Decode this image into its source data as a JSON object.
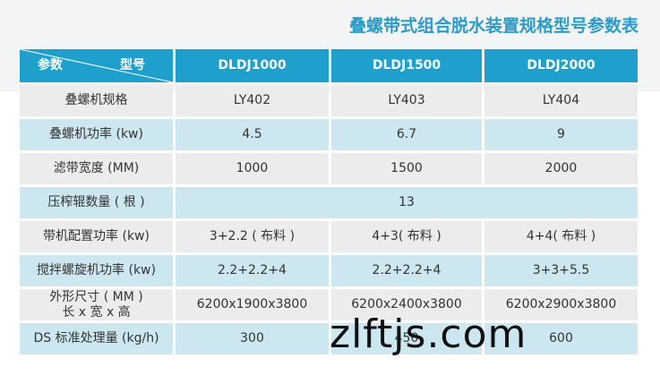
{
  "title": "叠螺带式组合脱水装置规格型号参数表",
  "table": {
    "header": {
      "param_label": "参数",
      "model_label": "型号",
      "models": [
        "DLDJ1000",
        "DLDJ1500",
        "DLDJ2000"
      ]
    },
    "rows": [
      {
        "label": [
          "叠螺机规格"
        ],
        "cells": [
          "LY402",
          "LY403",
          "LY404"
        ]
      },
      {
        "label": [
          "叠螺机功率 (kw)"
        ],
        "cells": [
          "4.5",
          "6.7",
          "9"
        ]
      },
      {
        "label": [
          "滤带宽度 (MM)"
        ],
        "cells": [
          "1000",
          "1500",
          "2000"
        ]
      },
      {
        "label": [
          "压榨辊数量 ( 根 )"
        ],
        "cells": [
          "13"
        ]
      },
      {
        "label": [
          "带机配置功率 (kw)"
        ],
        "cells": [
          "3+2.2 ( 布料 )",
          "4+3( 布料 )",
          "4+4( 布料 )"
        ]
      },
      {
        "label": [
          "搅拌螺旋机功率 (kw)"
        ],
        "cells": [
          "2.2+2.2+4",
          "2.2+2.2+4",
          "3+3+5.5"
        ]
      },
      {
        "label": [
          "外形尺寸 ( MM )",
          "长 x 宽 x 高"
        ],
        "cells": [
          "6200x1900x3800",
          "6200x2400x3800",
          "6200x2900x3800"
        ]
      },
      {
        "label": [
          "DS 标准处理量 (kg/h)"
        ],
        "cells": [
          "300",
          "450",
          "600"
        ]
      }
    ]
  },
  "watermark": "zlftjs.com"
}
